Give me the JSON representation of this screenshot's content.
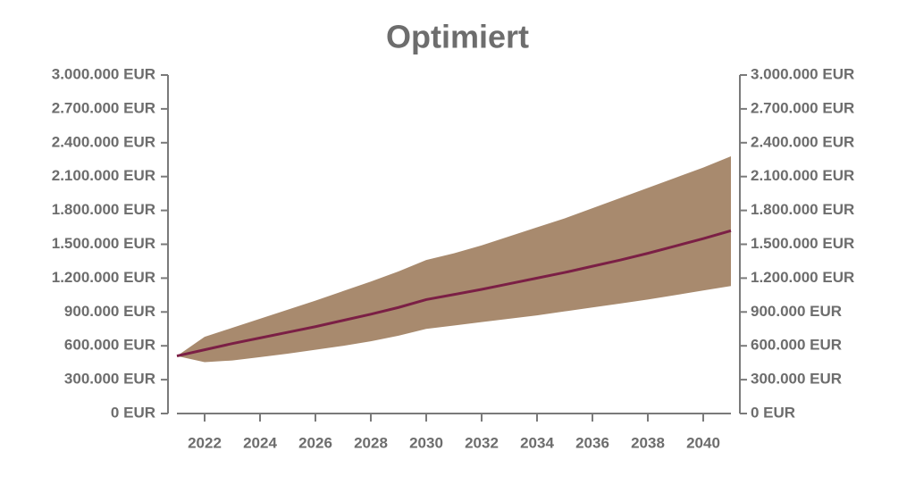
{
  "chart_data": {
    "type": "band-line",
    "title": "Optimiert",
    "x": [
      2021,
      2022,
      2023,
      2024,
      2025,
      2026,
      2027,
      2028,
      2029,
      2030,
      2031,
      2032,
      2033,
      2034,
      2035,
      2036,
      2037,
      2038,
      2039,
      2040,
      2041
    ],
    "band": {
      "color": "#a88a6e",
      "upper": [
        510000,
        680000,
        760000,
        840000,
        920000,
        1000000,
        1085000,
        1170000,
        1260000,
        1360000,
        1420000,
        1490000,
        1570000,
        1650000,
        1730000,
        1820000,
        1910000,
        2000000,
        2090000,
        2180000,
        2280000
      ],
      "lower": [
        510000,
        455000,
        470000,
        500000,
        530000,
        565000,
        600000,
        640000,
        690000,
        750000,
        780000,
        810000,
        840000,
        870000,
        905000,
        940000,
        975000,
        1010000,
        1050000,
        1090000,
        1130000
      ]
    },
    "line": {
      "color": "#7b1f45",
      "values": [
        510000,
        565000,
        620000,
        670000,
        720000,
        770000,
        825000,
        880000,
        940000,
        1010000,
        1055000,
        1100000,
        1150000,
        1200000,
        1250000,
        1305000,
        1360000,
        1420000,
        1485000,
        1550000,
        1620000
      ]
    },
    "xlim": [
      2021,
      2041
    ],
    "xticks": [
      2022,
      2024,
      2026,
      2028,
      2030,
      2032,
      2034,
      2036,
      2038,
      2040
    ],
    "ylim": [
      0,
      3000000
    ],
    "yticks": [
      {
        "value": 0,
        "label": "0 EUR"
      },
      {
        "value": 300000,
        "label": "300.000 EUR"
      },
      {
        "value": 600000,
        "label": "600.000 EUR"
      },
      {
        "value": 900000,
        "label": "900.000 EUR"
      },
      {
        "value": 1200000,
        "label": "1.200.000 EUR"
      },
      {
        "value": 1500000,
        "label": "1.500.000 EUR"
      },
      {
        "value": 1800000,
        "label": "1.800.000 EUR"
      },
      {
        "value": 2100000,
        "label": "2.100.000 EUR"
      },
      {
        "value": 2400000,
        "label": "2.400.000 EUR"
      },
      {
        "value": 2700000,
        "label": "2.700.000 EUR"
      },
      {
        "value": 3000000,
        "label": "3.000.000 EUR"
      }
    ],
    "y2lim": [
      0,
      3000000
    ],
    "y2ticks": [
      {
        "value": 0,
        "label": "0 EUR"
      },
      {
        "value": 300000,
        "label": "300.000 EUR"
      },
      {
        "value": 600000,
        "label": "600.000 EUR"
      },
      {
        "value": 900000,
        "label": "900.000 EUR"
      },
      {
        "value": 1200000,
        "label": "1.200.000 EUR"
      },
      {
        "value": 1500000,
        "label": "1.500.000 EUR"
      },
      {
        "value": 1800000,
        "label": "1.800.000 EUR"
      },
      {
        "value": 2100000,
        "label": "2.100.000 EUR"
      },
      {
        "value": 2400000,
        "label": "2.400.000 EUR"
      },
      {
        "value": 2700000,
        "label": "2.700.000 EUR"
      },
      {
        "value": 3000000,
        "label": "3.000.000 EUR"
      }
    ]
  }
}
